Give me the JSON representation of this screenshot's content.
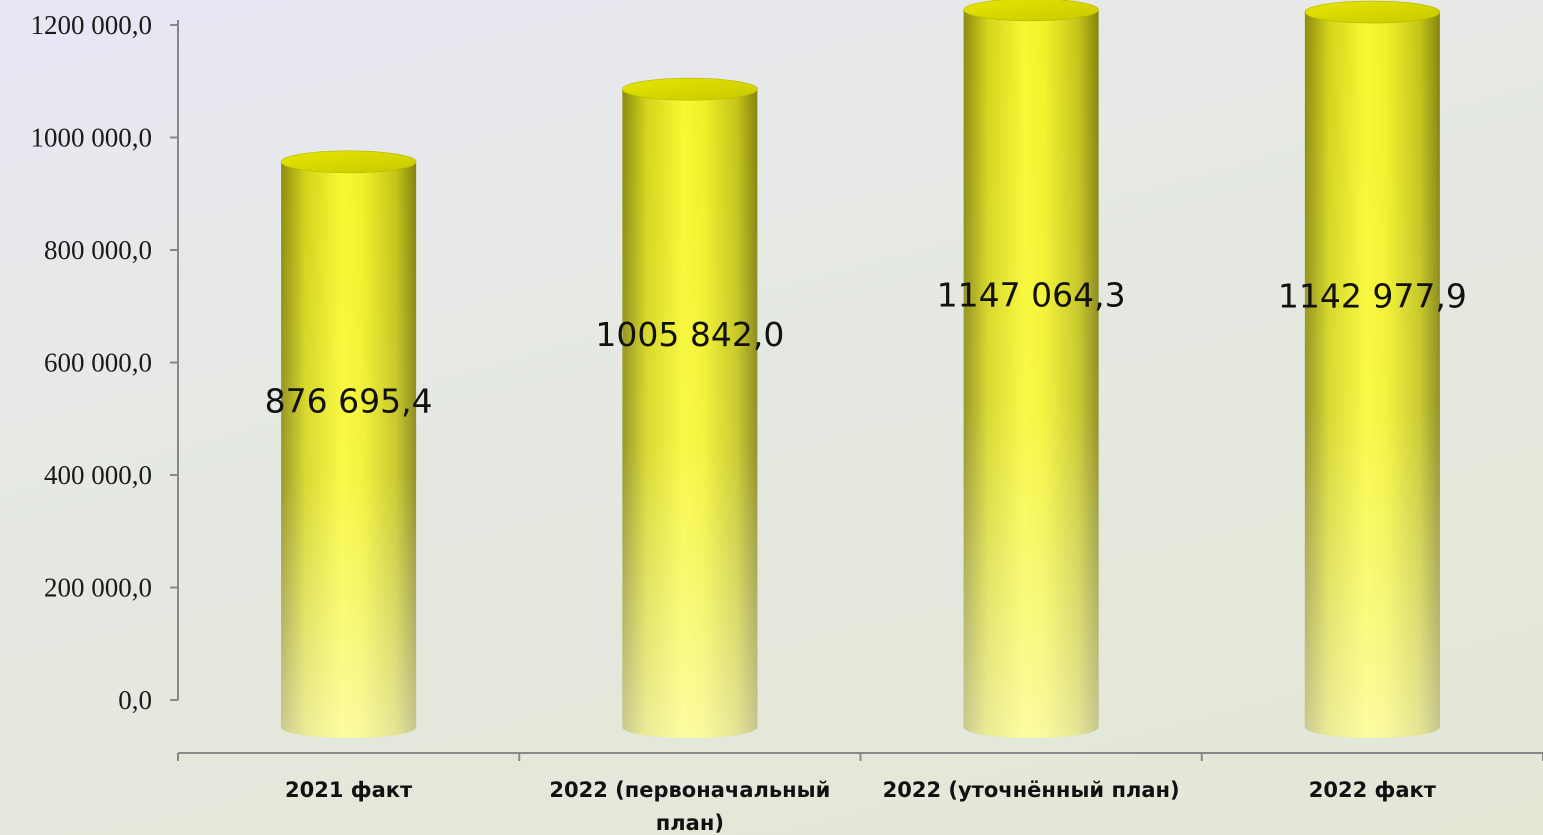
{
  "chart_data": {
    "type": "bar",
    "title": "",
    "xlabel": "",
    "ylabel": "",
    "ylim": [
      0,
      1200000
    ],
    "y_ticks": [
      "0,0",
      "200 000,0",
      "400 000,0",
      "600 000,0",
      "800 000,0",
      "1000 000,0",
      "1200 000,0"
    ],
    "y_tick_values": [
      0,
      200000,
      400000,
      600000,
      800000,
      1000000,
      1200000
    ],
    "categories": [
      [
        "2021 факт"
      ],
      [
        "2022 (первоначальный",
        "план)"
      ],
      [
        "2022 (уточнённый план)"
      ],
      [
        "2022 факт"
      ]
    ],
    "values": [
      876695.4,
      1005842.0,
      1147064.3,
      1142977.9
    ],
    "data_labels": [
      "876 695,4",
      "1005 842,0",
      "1147 064,3",
      "1142 977,9"
    ],
    "grid": false,
    "legend": "none",
    "colors": {
      "bar_light": "#ffff8a",
      "bar_mid": "#f4f520",
      "bar_dark": "#8c8c10",
      "bar_top": "#d8d800",
      "axis": "#888888"
    }
  }
}
